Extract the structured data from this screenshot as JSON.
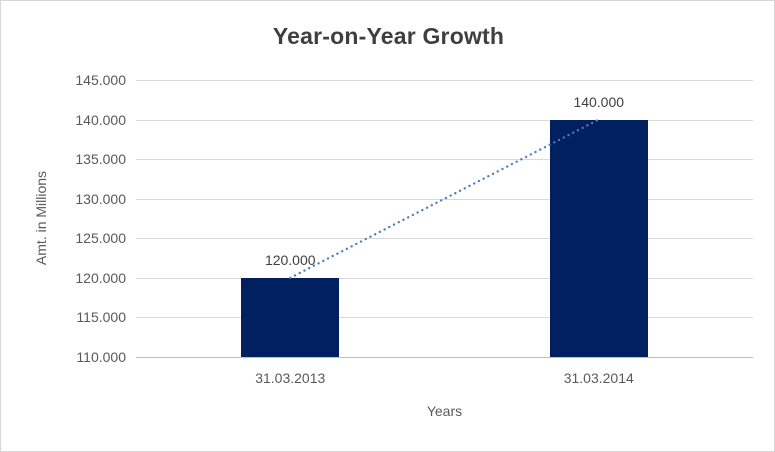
{
  "window": {
    "background": "#ffffff",
    "border_color": "#d6d6d6"
  },
  "chart_data": {
    "type": "bar",
    "title": "Year-on-Year Growth",
    "categories": [
      "31.03.2013",
      "31.03.2014"
    ],
    "values": [
      120000,
      140000
    ],
    "data_labels": [
      "120.000",
      "140.000"
    ],
    "xlabel": "Years",
    "ylabel": "Amt. in Millions",
    "ylim": [
      110000,
      145000
    ],
    "ytick_step": 5000,
    "ytick_labels": [
      "110.000",
      "115.000",
      "120.000",
      "125.000",
      "130.000",
      "135.000",
      "140.000",
      "145.000"
    ],
    "grid": true,
    "legend_position": "none",
    "bar_color": "#002060",
    "gridline_color": "#d9d9d9",
    "axis_line_color": "#bfbfbf",
    "tick_label_color": "#595959",
    "data_label_color": "#404040",
    "title_color": "#3f3f3f",
    "trendline": {
      "type": "linear",
      "style": "dotted",
      "color": "#4a7ebf",
      "x": [
        0,
        1
      ],
      "y": [
        120000,
        140000
      ]
    }
  }
}
